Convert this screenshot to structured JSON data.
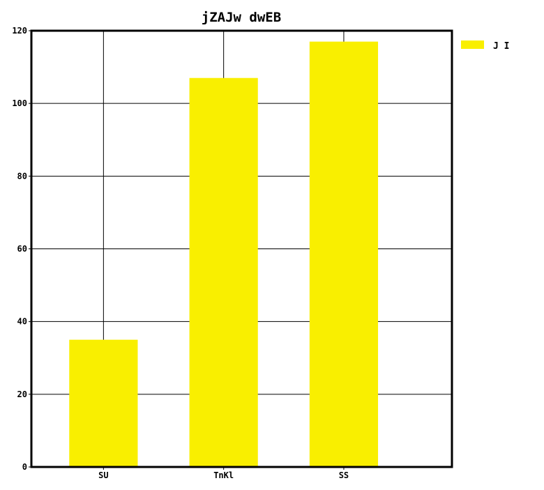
{
  "chart_data": {
    "type": "bar",
    "title": "jZAJw dwEB",
    "xlabel": "",
    "ylabel": "",
    "categories": [
      "SU",
      "TnKl",
      "SS"
    ],
    "series": [
      {
        "name": "J I",
        "values": [
          35,
          107,
          117
        ],
        "color": "#f9ef00"
      }
    ],
    "ylim": [
      0,
      120
    ],
    "yticks": [
      0,
      20,
      40,
      60,
      80,
      100,
      120
    ],
    "grid": true,
    "legend": "top-right outside plot"
  }
}
